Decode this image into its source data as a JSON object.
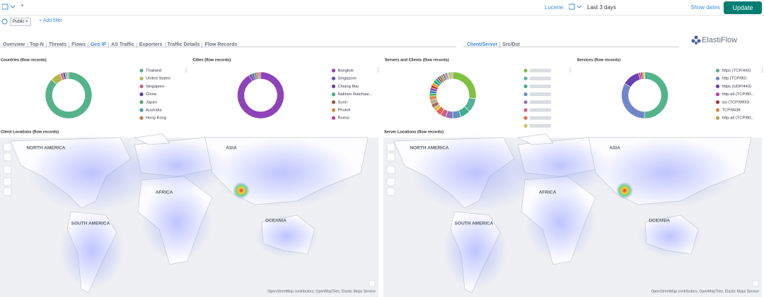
{
  "toolbar": {
    "query": "*",
    "syntax": "Lucene",
    "date_range": "Last 3 days",
    "show_dates": "Show dates",
    "update": "Update"
  },
  "filters": {
    "pill": "Public",
    "add_filter": "+ Add filter"
  },
  "nav": {
    "tabs": [
      "Overview",
      "Top-N",
      "Threats",
      "Flows",
      "Geo IP",
      "AS Traffic",
      "Exporters",
      "Traffic Details",
      "Flow Records"
    ],
    "active": 4,
    "sub_tabs": [
      "Client/Server",
      "Src/Dst"
    ],
    "sub_active": 0,
    "logo": "ElastiFlow"
  },
  "panels": [
    {
      "type": "pie",
      "title": "Countries (flow records)",
      "labels": [
        "Thailand",
        "United States",
        "Singapore",
        "China",
        "Japan",
        "Australia",
        "Hong Kong"
      ],
      "values": [
        86,
        7,
        2,
        1.5,
        1,
        0.8,
        0.7
      ],
      "colors": [
        "#54b38a",
        "#b4b84a",
        "#d36086",
        "#5b3fa8",
        "#4fa86e",
        "#3d9ea8",
        "#c07a3a"
      ]
    },
    {
      "type": "pie",
      "title": "Cities (flow records)",
      "labels": [
        "Bangkok",
        "Singapore",
        "Chiang Mai",
        "Nakhon Ratchasi...",
        "Surin",
        "Phuket",
        "Rueso"
      ],
      "values": [
        88,
        2,
        1.5,
        1.5,
        1,
        1,
        1
      ],
      "colors": [
        "#8e44b8",
        "#6a4bb0",
        "#7a3fa0",
        "#3fae8c",
        "#9a5a3a",
        "#d8893a",
        "#c43fa0"
      ]
    },
    {
      "type": "pie",
      "title": "Servers and Clients (flow records)",
      "labels": [],
      "values": [
        28,
        10,
        7,
        6,
        5,
        4,
        4,
        3,
        3,
        3,
        3,
        2,
        2,
        2,
        2,
        2,
        2,
        2,
        1.5,
        1.5,
        1.5,
        1.5,
        1,
        1,
        1,
        1,
        1,
        1
      ],
      "colors": [
        "#7ec13f",
        "#54b399",
        "#3fae8c",
        "#6092c0",
        "#9170b8",
        "#d36086",
        "#e7664c",
        "#d6bf57",
        "#aa6556",
        "#b9a888",
        "#da8b45",
        "#4caf50",
        "#2e86c1",
        "#8e44ad",
        "#c0392b",
        "#f39c12",
        "#16a085",
        "#27ae60",
        "#7d3c98",
        "#d35400",
        "#1abc9c",
        "#e74c3c",
        "#3498db",
        "#9b59b6",
        "#f1c40f",
        "#2ecc71",
        "#e67e22",
        "#95a5a6"
      ]
    },
    {
      "type": "pie",
      "title": "Services (flow records)",
      "labels": [
        "https (TCP/443)",
        "http (TCP/80)",
        "https (UDP/443)",
        "http-alt (TCP/80...",
        "isa (TCP/9900)",
        "TCP/8438",
        "http-alt (TCP/80..."
      ],
      "values": [
        50,
        33,
        12,
        1.5,
        1.2,
        1,
        0.8
      ],
      "colors": [
        "#54b38a",
        "#6f86cc",
        "#6a3fb0",
        "#c43fa0",
        "#a3303a",
        "#d8893a",
        "#a8a84a"
      ]
    }
  ],
  "maps": [
    {
      "title": "Client Locations (flow records)",
      "labels": [
        "NORTH AMERICA",
        "ASIA",
        "AFRICA",
        "SOUTH AMERICA",
        "OCEANIA"
      ],
      "attribution": "OpenStreetMap contributors, OpenMapTiles, Elastic Maps Service"
    },
    {
      "title": "Server Locations (flow records)",
      "labels": [
        "NORTH AMERICA",
        "ASIA",
        "AFRICA",
        "SOUTH AMERICA",
        "OCEANIA"
      ],
      "attribution": "OpenStreetMap contributors, OpenMapTiles, Elastic Maps Service"
    }
  ]
}
